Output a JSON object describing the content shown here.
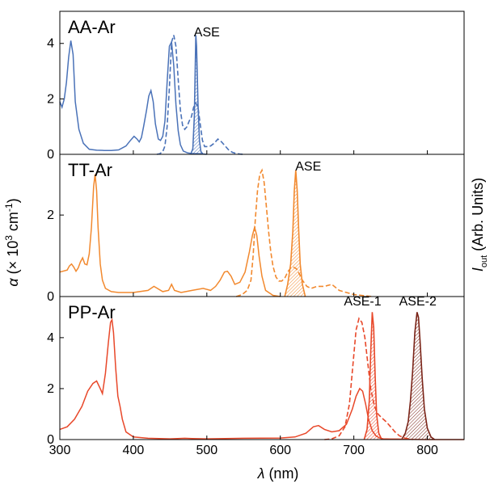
{
  "chart_data": {
    "type": "line",
    "x_label_var": "λ",
    "x_label_unit": "(nm)",
    "y_label_left_prefix": "α",
    "y_label_left_rest": "(× 10",
    "y_label_left_exp": "3",
    "y_label_left_unit": "cm",
    "y_label_left_unit_exp": "-1",
    "y_label_left_close": ")",
    "y_label_right_var": "I",
    "y_label_right_sub": "out",
    "y_label_right_rest": "(Arb. Units)",
    "xlim": [
      300,
      850
    ],
    "x_ticks": [
      "300",
      "400",
      "500",
      "600",
      "700",
      "800"
    ],
    "x_tick_values": [
      300,
      400,
      500,
      600,
      700,
      800
    ],
    "panels": [
      {
        "title": "AA-Ar",
        "color": "#4a72b8",
        "ylim": [
          0,
          5.1
        ],
        "y_ticks": [
          "0",
          "2",
          "4"
        ],
        "y_tick_values": [
          0,
          2,
          4
        ],
        "annotations": [
          {
            "text": "ASE",
            "x": 500,
            "y": 4.2
          }
        ],
        "absorption": {
          "x": [
            300,
            303,
            306,
            309,
            312,
            315,
            318,
            321,
            326,
            332,
            340,
            350,
            360,
            370,
            380,
            390,
            396,
            401,
            405,
            408,
            411,
            414,
            418,
            421,
            424,
            427,
            430,
            434,
            437,
            440,
            443,
            446,
            449,
            452,
            455,
            458,
            461,
            464,
            468,
            474,
            480,
            490,
            500
          ],
          "y": [
            1.9,
            1.7,
            2.0,
            2.6,
            3.5,
            4.1,
            3.6,
            1.9,
            0.9,
            0.4,
            0.18,
            0.15,
            0.14,
            0.14,
            0.16,
            0.3,
            0.5,
            0.65,
            0.55,
            0.45,
            0.6,
            1.0,
            1.6,
            2.1,
            2.3,
            1.9,
            1.1,
            0.55,
            0.5,
            0.65,
            1.2,
            2.6,
            3.9,
            4.05,
            3.2,
            1.8,
            0.85,
            0.35,
            0.12,
            0.05,
            0.03,
            0.02,
            0.0
          ]
        },
        "emission": {
          "x": [
            432,
            436,
            440,
            443,
            446,
            449,
            452,
            455,
            458,
            461,
            464,
            467,
            470,
            473,
            476,
            479,
            482,
            485,
            488,
            491,
            494,
            497,
            500,
            505,
            510,
            515,
            520,
            525,
            530,
            535,
            540,
            545,
            550
          ],
          "y": [
            0.0,
            0.02,
            0.1,
            0.3,
            1.0,
            2.4,
            4.05,
            4.3,
            3.9,
            2.7,
            1.6,
            1.05,
            0.9,
            1.0,
            1.2,
            1.35,
            1.7,
            1.85,
            1.7,
            1.1,
            0.5,
            0.28,
            0.28,
            0.3,
            0.4,
            0.55,
            0.45,
            0.3,
            0.15,
            0.07,
            0.03,
            0.01,
            0.0
          ]
        },
        "ase": [
          {
            "x": [
              478,
              481,
              483,
              485,
              486,
              488,
              490,
              492,
              495
            ],
            "y": [
              0,
              0.2,
              1.4,
              4.3,
              3.9,
              1.8,
              0.5,
              0.1,
              0
            ]
          }
        ]
      },
      {
        "title": "TT-Ar",
        "color": "#f2892e",
        "ylim": [
          0,
          3.45
        ],
        "y_ticks": [
          "0",
          "2"
        ],
        "y_tick_values": [
          0,
          2
        ],
        "annotations": [
          {
            "text": "ASE",
            "x": 638,
            "y": 3.05
          }
        ],
        "absorption": {
          "x": [
            300,
            310,
            313,
            316,
            319,
            322,
            325,
            328,
            331,
            334,
            337,
            340,
            343,
            346,
            348,
            350,
            352,
            355,
            358,
            362,
            370,
            380,
            400,
            420,
            428,
            440,
            448,
            452,
            456,
            465,
            480,
            495,
            505,
            512,
            518,
            524,
            528,
            533,
            538,
            545,
            552,
            558,
            562,
            565,
            568,
            571,
            575,
            580,
            590,
            600
          ],
          "y": [
            0.6,
            0.65,
            0.75,
            0.8,
            0.72,
            0.62,
            0.7,
            0.85,
            0.95,
            0.8,
            0.78,
            1.05,
            1.7,
            2.7,
            3.0,
            2.6,
            1.7,
            0.8,
            0.4,
            0.2,
            0.12,
            0.1,
            0.1,
            0.15,
            0.25,
            0.12,
            0.15,
            0.3,
            0.15,
            0.1,
            0.15,
            0.2,
            0.15,
            0.25,
            0.4,
            0.6,
            0.62,
            0.5,
            0.3,
            0.35,
            0.6,
            1.1,
            1.5,
            1.7,
            1.5,
            1.0,
            0.5,
            0.15,
            0.03,
            0.0
          ]
        },
        "emission": {
          "x": [
            540,
            548,
            555,
            560,
            563,
            566,
            569,
            572,
            575,
            578,
            581,
            584,
            587,
            590,
            594,
            598,
            602,
            606,
            610,
            614,
            618,
            622,
            626,
            630,
            636,
            642,
            650,
            660,
            670,
            680,
            690,
            700,
            710,
            720,
            725
          ],
          "y": [
            0.0,
            0.05,
            0.15,
            0.4,
            1.0,
            1.9,
            2.6,
            3.0,
            3.1,
            2.8,
            2.2,
            1.6,
            1.1,
            0.75,
            0.48,
            0.38,
            0.38,
            0.45,
            0.6,
            0.7,
            0.72,
            0.68,
            0.55,
            0.4,
            0.25,
            0.2,
            0.25,
            0.25,
            0.3,
            0.15,
            0.1,
            0.05,
            0.03,
            0.01,
            0.0
          ]
        },
        "ase": [
          {
            "x": [
              606,
              610,
              614,
              617,
              619,
              621,
              623,
              625,
              627,
              630,
              634
            ],
            "y": [
              0,
              0.3,
              0.8,
              1.6,
              2.6,
              3.1,
              2.6,
              1.6,
              0.8,
              0.3,
              0
            ]
          }
        ]
      },
      {
        "title": "PP-Ar",
        "color": "#e8482a",
        "ylim": [
          0,
          5.55
        ],
        "y_ticks": [
          "0",
          "2",
          "4"
        ],
        "y_tick_values": [
          0,
          2,
          4
        ],
        "annotations": [
          {
            "text": "ASE-1",
            "x": 712,
            "y": 5.2
          },
          {
            "text": "ASE-2",
            "x": 787,
            "y": 5.2
          }
        ],
        "absorption": {
          "x": [
            300,
            310,
            320,
            330,
            338,
            345,
            350,
            355,
            358,
            362,
            366,
            369,
            371,
            373,
            376,
            379,
            382,
            385,
            390,
            400,
            420,
            450,
            470,
            480,
            500,
            550,
            600,
            620,
            635,
            645,
            652,
            660,
            670,
            680,
            690,
            698,
            703,
            708,
            712,
            716,
            720,
            725,
            730,
            735,
            740,
            750,
            760,
            770,
            800,
            850
          ],
          "y": [
            0.4,
            0.5,
            0.8,
            1.3,
            1.9,
            2.2,
            2.3,
            2.0,
            1.8,
            2.6,
            3.8,
            4.6,
            4.7,
            4.2,
            2.8,
            1.7,
            1.3,
            0.8,
            0.3,
            0.1,
            0.05,
            0.03,
            0.05,
            0.04,
            0.03,
            0.05,
            0.06,
            0.1,
            0.25,
            0.5,
            0.55,
            0.4,
            0.3,
            0.35,
            0.6,
            1.2,
            1.7,
            2.0,
            1.9,
            1.4,
            0.8,
            0.35,
            0.15,
            0.06,
            0.03,
            0.02,
            0.02,
            0.01,
            0.0,
            0.0
          ]
        },
        "emission": {
          "x": [
            660,
            670,
            680,
            688,
            694,
            699,
            703,
            707,
            711,
            715,
            719,
            723,
            728,
            733,
            738,
            744,
            750,
            756,
            762,
            770,
            780
          ],
          "y": [
            0.0,
            0.03,
            0.15,
            0.5,
            1.4,
            3.0,
            4.3,
            4.75,
            4.6,
            4.0,
            3.0,
            2.0,
            1.3,
            1.0,
            0.85,
            0.7,
            0.5,
            0.3,
            0.15,
            0.05,
            0.0
          ]
        },
        "ase": [
          {
            "x": [
              714,
              718,
              721,
              723,
              725,
              727,
              729,
              731,
              734,
              738
            ],
            "y": [
              0,
              0.4,
              1.5,
              3.4,
              5.0,
              4.4,
              2.5,
              1.0,
              0.25,
              0
            ],
            "color": "#e8482a"
          },
          {
            "x": [
              765,
              770,
              774,
              777,
              780,
              783,
              786,
              788,
              790,
              793,
              796,
              800,
              805,
              810
            ],
            "y": [
              0,
              0.25,
              0.7,
              1.5,
              2.7,
              4.2,
              5.0,
              4.8,
              3.9,
              2.4,
              1.2,
              0.45,
              0.1,
              0
            ],
            "color": "#7a2418"
          }
        ]
      }
    ]
  }
}
